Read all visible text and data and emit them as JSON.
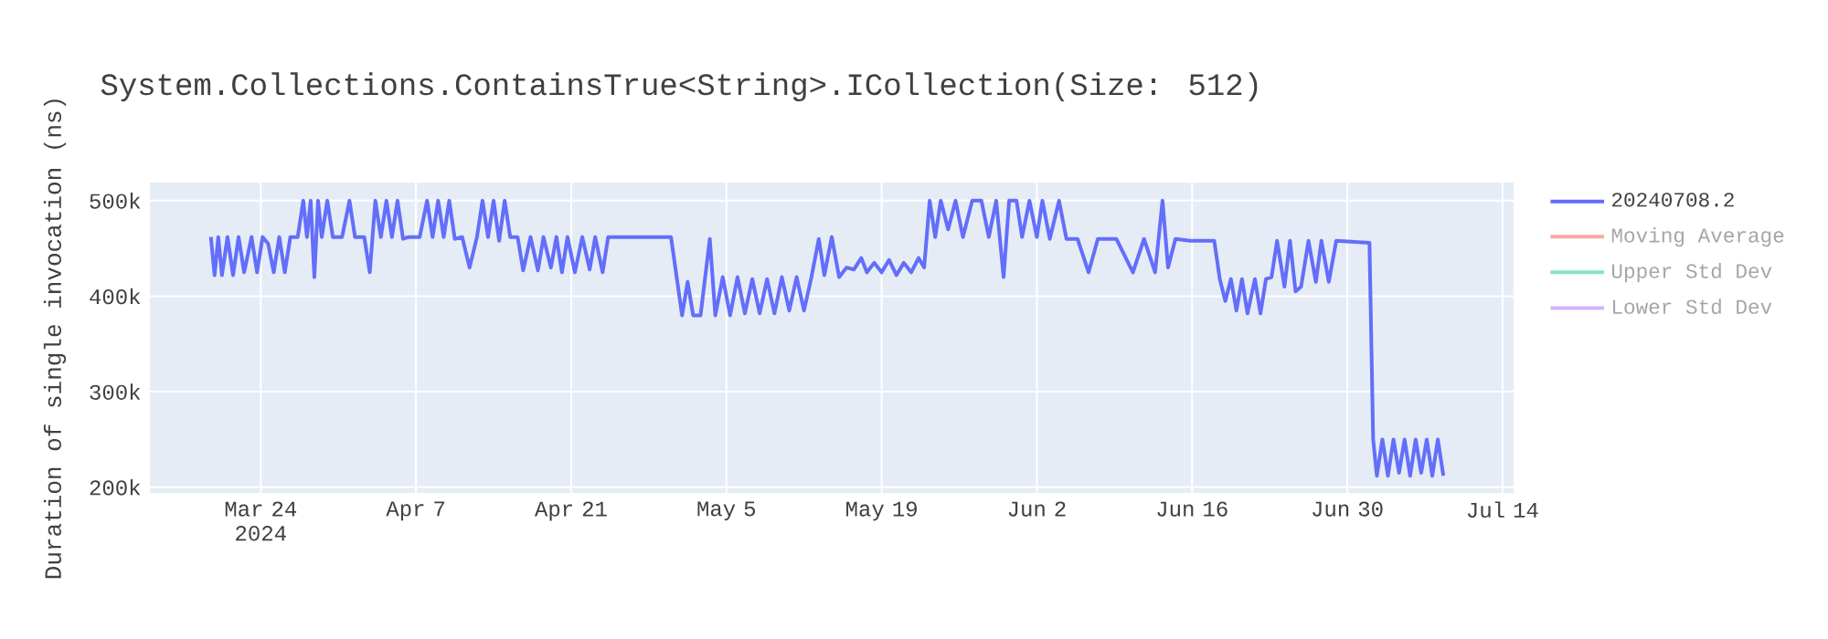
{
  "chart_data": {
    "type": "line",
    "title": "System.Collections.ContainsTrue<String>.ICollection(Size: 512)",
    "ylabel": "Duration of single invocation (ns)",
    "xlim": [
      "2024-03-14",
      "2024-07-15"
    ],
    "ylim": [
      194000,
      519000
    ],
    "xticks": [
      {
        "value": "2024-03-24",
        "label": "Mar 24 2024"
      },
      {
        "value": "2024-04-07",
        "label": "Apr 7"
      },
      {
        "value": "2024-04-21",
        "label": "Apr 21"
      },
      {
        "value": "2024-05-05",
        "label": "May 5"
      },
      {
        "value": "2024-05-19",
        "label": "May 19"
      },
      {
        "value": "2024-06-02",
        "label": "Jun 2"
      },
      {
        "value": "2024-06-16",
        "label": "Jun 16"
      },
      {
        "value": "2024-06-30",
        "label": "Jun 30"
      },
      {
        "value": "2024-07-14",
        "label": "Jul 14"
      }
    ],
    "yticks": [
      {
        "value": 200000,
        "label": "200k"
      },
      {
        "value": 300000,
        "label": "300k"
      },
      {
        "value": 400000,
        "label": "400k"
      },
      {
        "value": 500000,
        "label": "500k"
      }
    ],
    "grid": true,
    "legend": "right",
    "series": [
      {
        "name": "20240708.2",
        "color": "#636efa",
        "x": [
          "2024-03-19T12:00",
          "2024-03-19T20:00",
          "2024-03-20T04:00",
          "2024-03-20T12:00",
          "2024-03-21T00:00",
          "2024-03-21T12:00",
          "2024-03-22T00:00",
          "2024-03-22T12:00",
          "2024-03-23T04:00",
          "2024-03-23T16:00",
          "2024-03-24T04:00",
          "2024-03-24T16:00",
          "2024-03-25T04:00",
          "2024-03-25T16:00",
          "2024-03-26T04:00",
          "2024-03-26T16:00",
          "2024-03-27T08:00",
          "2024-03-27T20:00",
          "2024-03-28T04:00",
          "2024-03-28T12:00",
          "2024-03-28T20:00",
          "2024-03-29T04:00",
          "2024-03-29T12:00",
          "2024-03-30T00:00",
          "2024-03-30T12:00",
          "2024-03-31T08:00",
          "2024-04-01T00:00",
          "2024-04-01T12:00",
          "2024-04-02T08:00",
          "2024-04-02T20:00",
          "2024-04-03T08:00",
          "2024-04-03T20:00",
          "2024-04-04T08:00",
          "2024-04-04T20:00",
          "2024-04-05T08:00",
          "2024-04-05T20:00",
          "2024-04-06T08:00",
          "2024-04-07T08:00",
          "2024-04-08T00:00",
          "2024-04-08T12:00",
          "2024-04-09T00:00",
          "2024-04-09T12:00",
          "2024-04-10T00:00",
          "2024-04-10T12:00",
          "2024-04-11T04:00",
          "2024-04-11T20:00",
          "2024-04-12T12:00",
          "2024-04-13T00:00",
          "2024-04-13T12:00",
          "2024-04-14T00:00",
          "2024-04-14T12:00",
          "2024-04-15T00:00",
          "2024-04-15T12:00",
          "2024-04-16T04:00",
          "2024-04-16T16:00",
          "2024-04-17T08:00",
          "2024-04-18T00:00",
          "2024-04-18T12:00",
          "2024-04-19T04:00",
          "2024-04-19T16:00",
          "2024-04-20T04:00",
          "2024-04-20T16:00",
          "2024-04-21T08:00",
          "2024-04-22T00:00",
          "2024-04-22T16:00",
          "2024-04-23T04:00",
          "2024-04-23T20:00",
          "2024-04-24T08:00",
          "2024-04-26T00:00",
          "2024-04-30T00:00",
          "2024-05-01T00:00",
          "2024-05-01T12:00",
          "2024-05-02T00:00",
          "2024-05-02T16:00",
          "2024-05-03T12:00",
          "2024-05-04T00:00",
          "2024-05-04T16:00",
          "2024-05-05T08:00",
          "2024-05-06T00:00",
          "2024-05-06T16:00",
          "2024-05-07T08:00",
          "2024-05-08T00:00",
          "2024-05-08T16:00",
          "2024-05-09T08:00",
          "2024-05-10T00:00",
          "2024-05-10T16:00",
          "2024-05-11T08:00",
          "2024-05-12T00:00",
          "2024-05-12T16:00",
          "2024-05-13T08:00",
          "2024-05-13T20:00",
          "2024-05-14T12:00",
          "2024-05-15T04:00",
          "2024-05-15T20:00",
          "2024-05-16T12:00",
          "2024-05-17T04:00",
          "2024-05-17T16:00",
          "2024-05-18T08:00",
          "2024-05-19T00:00",
          "2024-05-19T16:00",
          "2024-05-20T08:00",
          "2024-05-21T00:00",
          "2024-05-21T16:00",
          "2024-05-22T08:00",
          "2024-05-22T20:00",
          "2024-05-23T08:00",
          "2024-05-23T20:00",
          "2024-05-24T08:00",
          "2024-05-25T00:00",
          "2024-05-25T16:00",
          "2024-05-26T08:00",
          "2024-05-27T04:00",
          "2024-05-28T00:00",
          "2024-05-28T16:00",
          "2024-05-29T08:00",
          "2024-05-30T00:00",
          "2024-05-30T12:00",
          "2024-05-31T04:00",
          "2024-05-31T16:00",
          "2024-06-01T08:00",
          "2024-06-02T00:00",
          "2024-06-02T12:00",
          "2024-06-03T04:00",
          "2024-06-04T00:00",
          "2024-06-04T16:00",
          "2024-06-05T16:00",
          "2024-06-06T16:00",
          "2024-06-07T12:00",
          "2024-06-09T04:00",
          "2024-06-10T16:00",
          "2024-06-11T16:00",
          "2024-06-12T16:00",
          "2024-06-13T08:00",
          "2024-06-13T20:00",
          "2024-06-14T12:00",
          "2024-06-15T20:00",
          "2024-06-18T00:00",
          "2024-06-18T12:00",
          "2024-06-19T00:00",
          "2024-06-19T12:00",
          "2024-06-20T00:00",
          "2024-06-20T12:00",
          "2024-06-21T00:00",
          "2024-06-21T16:00",
          "2024-06-22T04:00",
          "2024-06-22T16:00",
          "2024-06-23T04:00",
          "2024-06-23T16:00",
          "2024-06-24T08:00",
          "2024-06-24T20:00",
          "2024-06-25T08:00",
          "2024-06-25T20:00",
          "2024-06-26T12:00",
          "2024-06-27T04:00",
          "2024-06-27T16:00",
          "2024-06-28T08:00",
          "2024-06-29T00:00",
          "2024-07-02T00:00",
          "2024-07-02T08:00",
          "2024-07-02T16:00",
          "2024-07-03T04:00",
          "2024-07-03T16:00",
          "2024-07-04T04:00",
          "2024-07-04T16:00",
          "2024-07-05T04:00",
          "2024-07-05T16:00",
          "2024-07-06T04:00",
          "2024-07-06T16:00",
          "2024-07-07T04:00",
          "2024-07-07T16:00",
          "2024-07-08T04:00",
          "2024-07-08T16:00"
        ],
        "values": [
          462000,
          422000,
          462000,
          422000,
          462000,
          422000,
          462000,
          425000,
          462000,
          425000,
          462000,
          455000,
          425000,
          462000,
          425000,
          462000,
          462000,
          500000,
          462000,
          500000,
          420000,
          500000,
          462000,
          500000,
          462000,
          462000,
          500000,
          462000,
          462000,
          425000,
          500000,
          462000,
          500000,
          462000,
          500000,
          460000,
          462000,
          462000,
          500000,
          462000,
          500000,
          462000,
          500000,
          460000,
          462000,
          430000,
          462000,
          500000,
          462000,
          500000,
          458000,
          500000,
          462000,
          462000,
          427000,
          462000,
          427000,
          462000,
          430000,
          462000,
          425000,
          462000,
          425000,
          462000,
          428000,
          462000,
          425000,
          462000,
          462000,
          462000,
          380000,
          415000,
          380000,
          380000,
          460000,
          380000,
          420000,
          380000,
          420000,
          382000,
          418000,
          382000,
          418000,
          382000,
          420000,
          385000,
          420000,
          385000,
          420000,
          460000,
          422000,
          462000,
          420000,
          430000,
          428000,
          440000,
          425000,
          435000,
          425000,
          438000,
          422000,
          435000,
          425000,
          440000,
          430000,
          500000,
          462000,
          500000,
          470000,
          500000,
          462000,
          500000,
          500000,
          462000,
          500000,
          420000,
          500000,
          500000,
          462000,
          500000,
          462000,
          500000,
          460000,
          500000,
          460000,
          460000,
          425000,
          460000,
          460000,
          425000,
          460000,
          425000,
          500000,
          430000,
          460000,
          458000,
          458000,
          418000,
          395000,
          418000,
          385000,
          418000,
          382000,
          418000,
          382000,
          418000,
          420000,
          458000,
          410000,
          458000,
          405000,
          410000,
          458000,
          415000,
          458000,
          415000,
          458000,
          456000,
          250000,
          212000,
          250000,
          212000,
          250000,
          215000,
          250000,
          212000,
          250000,
          215000,
          250000,
          212000,
          250000,
          212000
        ]
      },
      {
        "name": "Moving Average",
        "color": "#ef553b"
      },
      {
        "name": "Upper Std Dev",
        "color": "#00cc96"
      },
      {
        "name": "Lower Std Dev",
        "color": "#ab63fa"
      }
    ]
  }
}
